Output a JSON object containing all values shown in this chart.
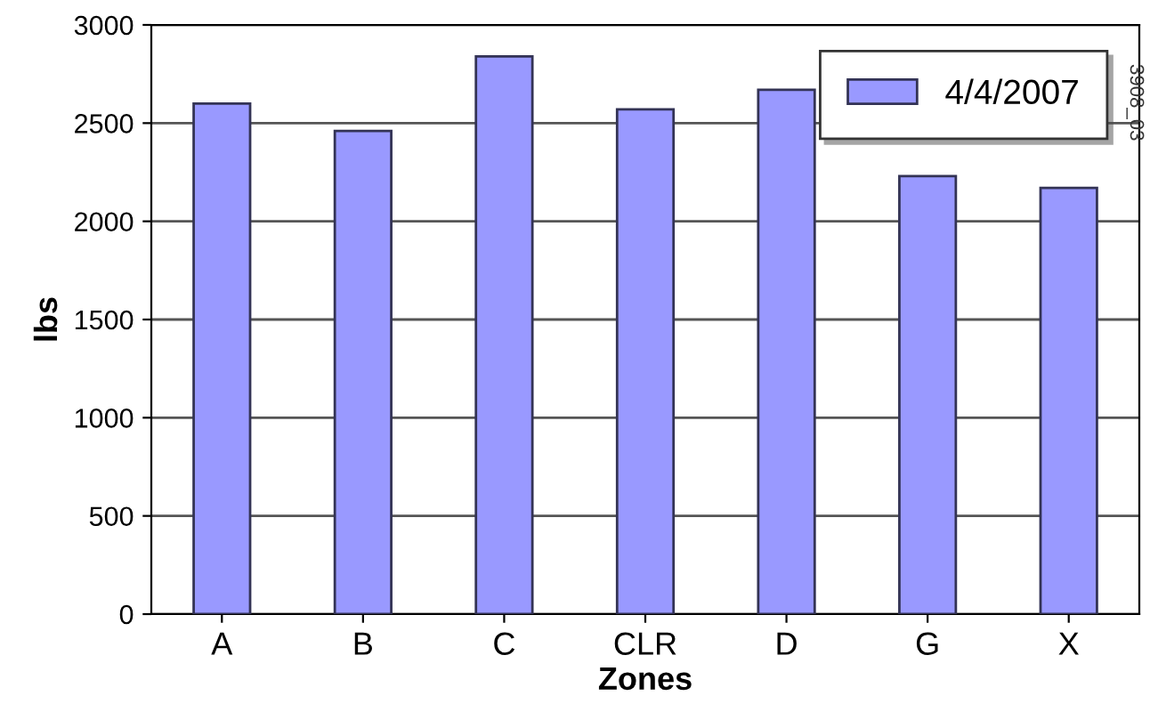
{
  "chart_data": {
    "type": "bar",
    "xlabel": "Zones",
    "ylabel": "lbs",
    "categories": [
      "A",
      "B",
      "C",
      "CLR",
      "D",
      "G",
      "X"
    ],
    "series": [
      {
        "name": "4/4/2007",
        "color": "#9999ff",
        "values": [
          2600,
          2460,
          2840,
          2570,
          2670,
          2230,
          2170
        ]
      }
    ],
    "ylim": [
      0,
      3000
    ],
    "yticks": [
      0,
      500,
      1000,
      1500,
      2000,
      2500,
      3000
    ],
    "grid": "y",
    "legend": "top right",
    "annotations": [
      "3908_03"
    ]
  }
}
